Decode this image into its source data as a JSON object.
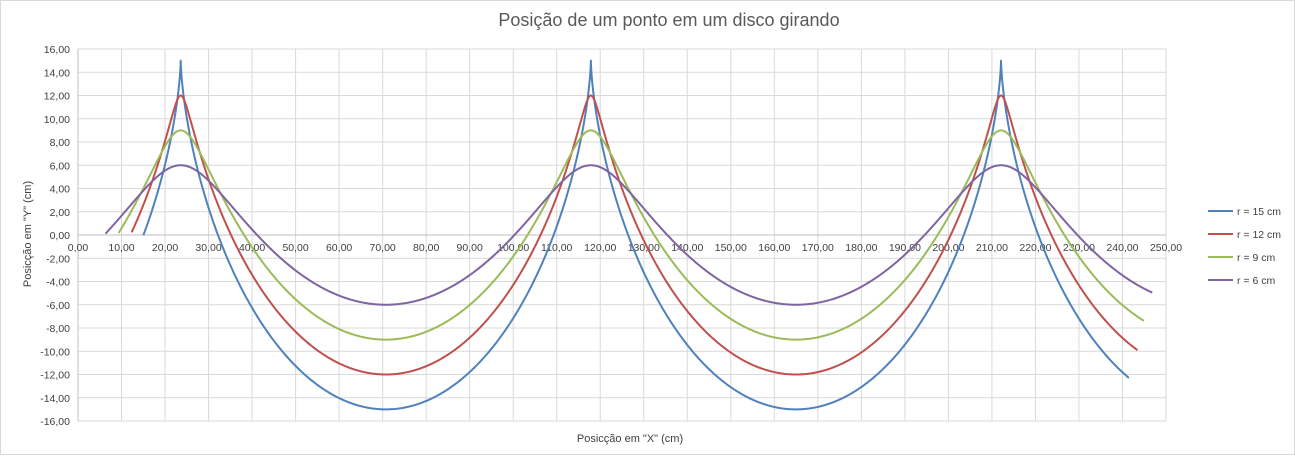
{
  "chart_data": {
    "type": "line",
    "title": "Posição de um ponto em um disco girando",
    "xlabel": "Posicção em \"X\" (cm)",
    "ylabel": "Posicção em \"Y\" (cm)",
    "xlim": [
      0,
      250
    ],
    "ylim": [
      -16,
      16
    ],
    "xticks": [
      "0,00",
      "10,00",
      "20,00",
      "30,00",
      "40,00",
      "50,00",
      "60,00",
      "70,00",
      "80,00",
      "90,00",
      "100,00",
      "110,00",
      "120,00",
      "130,00",
      "140,00",
      "150,00",
      "160,00",
      "170,00",
      "180,00",
      "190,00",
      "200,00",
      "210,00",
      "220,00",
      "230,00",
      "240,00",
      "250,00"
    ],
    "yticks": [
      "16,00",
      "14,00",
      "12,00",
      "10,00",
      "8,00",
      "6,00",
      "4,00",
      "2,00",
      "0,00",
      "-2,00",
      "-4,00",
      "-6,00",
      "-8,00",
      "-10,00",
      "-12,00",
      "-14,00",
      "-16,00"
    ],
    "grid": true,
    "legend_position": "right",
    "series": [
      {
        "name": "r = 15 cm",
        "color": "#4f81bd",
        "radius": 15,
        "start_x": 15.0,
        "end_x": 241.5
      },
      {
        "name": "r = 12 cm",
        "color": "#c0504d",
        "radius": 12,
        "start_x": 12.2,
        "end_x": 243.5
      },
      {
        "name": "r = 9 cm",
        "color": "#9bbb59",
        "radius": 9,
        "start_x": 9.3,
        "end_x": 245.0
      },
      {
        "name": "r = 6 cm",
        "color": "#8064a2",
        "radius": 6,
        "start_x": 6.3,
        "end_x": 247.0
      }
    ]
  }
}
